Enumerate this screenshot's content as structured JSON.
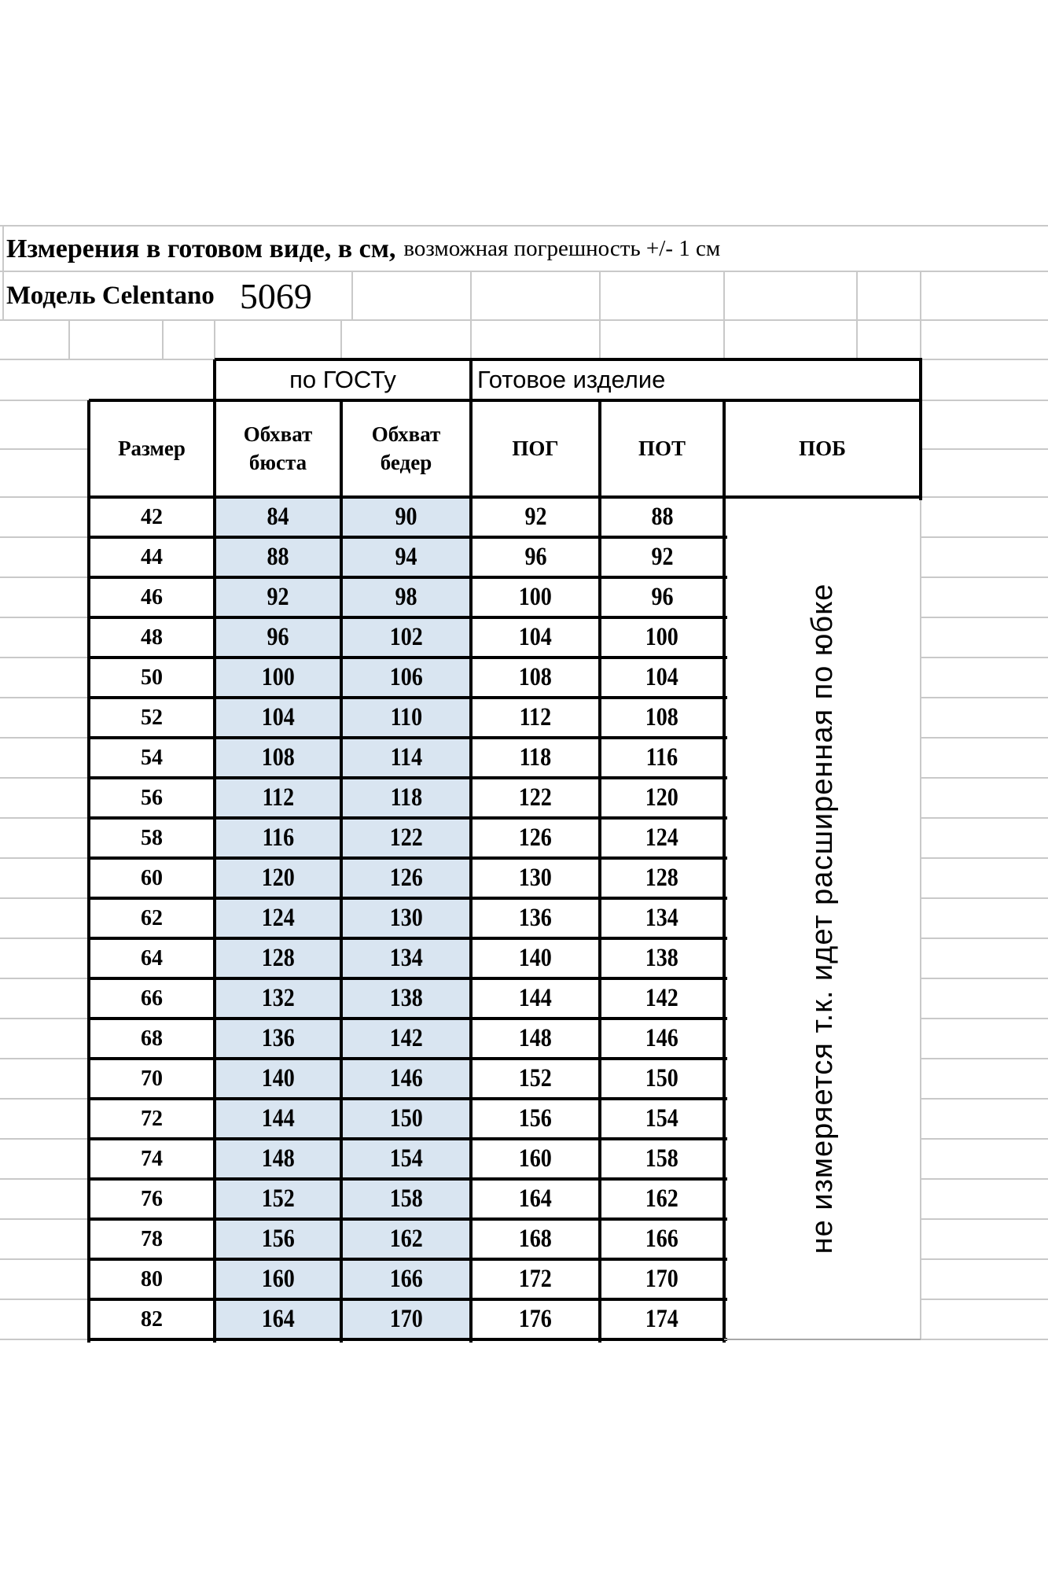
{
  "title": {
    "main": "Измерения в готовом виде, в  см,",
    "note": "возможная погрешность +/- 1 см"
  },
  "model": {
    "label": "Модель Celentano",
    "number": "5069"
  },
  "table": {
    "group_headers": [
      {
        "label": "по ГОСТу"
      },
      {
        "label": "Готовое изделие"
      }
    ],
    "columns": [
      "Размер",
      "Обхват бюста",
      "Обхват бедер",
      "ПОГ",
      "ПОТ",
      "ПОБ"
    ],
    "pob_note": "не измеряется т.к. идет расширенная по юбке",
    "rows": [
      [
        "42",
        "84",
        "90",
        "92",
        "88"
      ],
      [
        "44",
        "88",
        "94",
        "96",
        "92"
      ],
      [
        "46",
        "92",
        "98",
        "100",
        "96"
      ],
      [
        "48",
        "96",
        "102",
        "104",
        "100"
      ],
      [
        "50",
        "100",
        "106",
        "108",
        "104"
      ],
      [
        "52",
        "104",
        "110",
        "112",
        "108"
      ],
      [
        "54",
        "108",
        "114",
        "118",
        "116"
      ],
      [
        "56",
        "112",
        "118",
        "122",
        "120"
      ],
      [
        "58",
        "116",
        "122",
        "126",
        "124"
      ],
      [
        "60",
        "120",
        "126",
        "130",
        "128"
      ],
      [
        "62",
        "124",
        "130",
        "136",
        "134"
      ],
      [
        "64",
        "128",
        "134",
        "140",
        "138"
      ],
      [
        "66",
        "132",
        "138",
        "144",
        "142"
      ],
      [
        "68",
        "136",
        "142",
        "148",
        "146"
      ],
      [
        "70",
        "140",
        "146",
        "152",
        "150"
      ],
      [
        "72",
        "144",
        "150",
        "156",
        "154"
      ],
      [
        "74",
        "148",
        "154",
        "160",
        "158"
      ],
      [
        "76",
        "152",
        "158",
        "164",
        "162"
      ],
      [
        "78",
        "156",
        "162",
        "168",
        "166"
      ],
      [
        "80",
        "160",
        "166",
        "172",
        "170"
      ],
      [
        "82",
        "164",
        "170",
        "176",
        "174"
      ]
    ]
  },
  "colors": {
    "highlight": "#d9e5f1",
    "border": "#000000",
    "gridline": "#c9c9c9"
  }
}
